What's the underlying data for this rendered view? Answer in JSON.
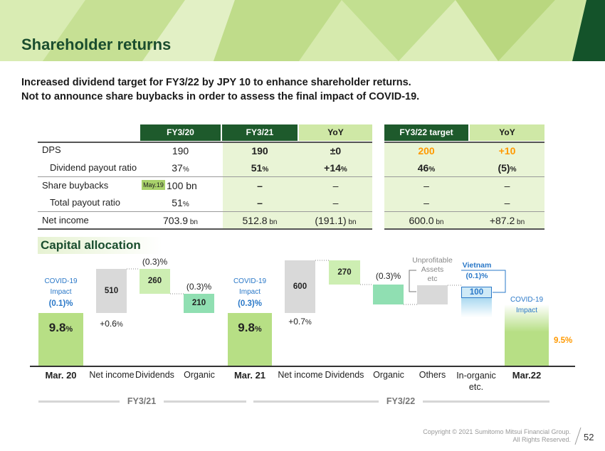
{
  "colors": {
    "accent_dark": "#1e5a2c",
    "accent_light": "#cfe8a6",
    "orange": "#ff9900",
    "blue": "#2a78c8",
    "grey_bar": "#d9d9d9",
    "teal_bar": "#90dfb2"
  },
  "header": {
    "title": "Shareholder returns"
  },
  "summary": {
    "line1": "Increased dividend target for FY3/22 by JPY 10 to enhance shareholder returns.",
    "line2": "Not to announce share buybacks in order to assess the final impact of COVID-19."
  },
  "table_main": {
    "headers": [
      "FY3/20",
      "FY3/21",
      "YoY"
    ],
    "rows": [
      {
        "label": "DPS",
        "fy20": "190",
        "fy20_unit": "",
        "fy21": "190",
        "fy21_unit": "",
        "yoy": "±0",
        "yoy_unit": ""
      },
      {
        "label": "Dividend payout ratio",
        "fy20": "37",
        "fy20_unit": "%",
        "fy21": "51",
        "fy21_unit": "%",
        "yoy": "+14",
        "yoy_unit": "%"
      },
      {
        "label": "Share buybacks",
        "badge": "May.19",
        "fy20": "100 bn",
        "fy20_unit": "",
        "fy21": "–",
        "fy21_unit": "",
        "yoy": "–",
        "yoy_unit": ""
      },
      {
        "label": "Total payout ratio",
        "fy20": "51",
        "fy20_unit": "%",
        "fy21": "–",
        "fy21_unit": "",
        "yoy": "–",
        "yoy_unit": ""
      },
      {
        "label": "Net income",
        "fy20": "703.9",
        "fy20_unit": " bn",
        "fy21": "512.8",
        "fy21_unit": " bn",
        "yoy": "(191.1)",
        "yoy_unit": " bn"
      }
    ]
  },
  "table_target": {
    "headers": [
      "FY3/22 target",
      "YoY"
    ],
    "rows": [
      {
        "target": "200",
        "target_unit": "",
        "yoy": "+10",
        "yoy_unit": ""
      },
      {
        "target": "46",
        "target_unit": "%",
        "yoy": "(5)",
        "yoy_unit": "%"
      },
      {
        "target": "–",
        "target_unit": "",
        "yoy": "–",
        "yoy_unit": ""
      },
      {
        "target": "–",
        "target_unit": "",
        "yoy": "–",
        "yoy_unit": ""
      },
      {
        "target": "600.0",
        "target_unit": " bn",
        "yoy": "+87.2",
        "yoy_unit": " bn"
      }
    ]
  },
  "capital": {
    "title": "Capital allocation",
    "covid_label_a": "COVID-19",
    "covid_label_b": "Impact",
    "covid_1_value": "(0.1)%",
    "covid_2_value": "(0.3)%",
    "mar20_value": "9.8",
    "mar21_value": "9.8",
    "pct": "%",
    "ni1_label": "510",
    "ni1_delta": "+0.6",
    "div1_label": "260",
    "div1_delta": "(0.3)%",
    "org1_label": "210",
    "org1_delta": "(0.3)%",
    "ni2_label": "600",
    "ni2_delta": "+0.7",
    "div2_label": "270",
    "org2_delta": "(0.3)%",
    "others_note_a": "Unprofitable",
    "others_note_b": "Assets",
    "others_note_c": "etc",
    "vietnam_a": "Vietnam",
    "vietnam_b": "(0.1)%",
    "inorg_label": "100",
    "covid_3_a": "COVID-19",
    "covid_3_b": "Impact",
    "mar22_value": "9.5%",
    "xlabels": [
      "Mar. 20",
      "Net income",
      "Dividends",
      "Organic",
      "Mar. 21",
      "Net income",
      "Dividends",
      "Organic",
      "Others",
      "In-organic etc.",
      "Mar.22"
    ],
    "period1": "FY3/21",
    "period2": "FY3/22"
  },
  "footer": {
    "copyright_1": "Copyright © 2021 Sumitomo Mitsui Financial Group.",
    "copyright_2": "All Rights Reserved.",
    "page": "52"
  }
}
